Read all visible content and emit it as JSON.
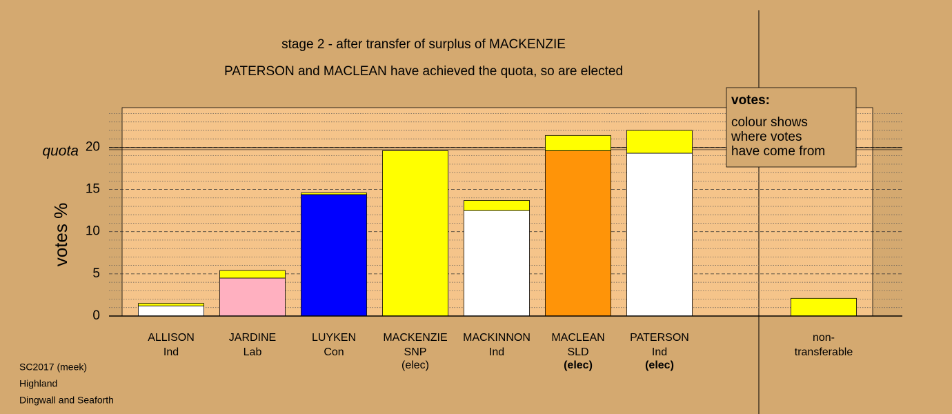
{
  "chart_data": {
    "type": "stacked-bar",
    "title": "stage 2 - after transfer of surplus of MACKENZIE",
    "subtitle": "PATERSON and MACLEAN have achieved the quota, so are elected",
    "y_label": "votes %",
    "categories": [
      "ALLISON",
      "JARDINE",
      "LUYKEN",
      "MACKENZIE",
      "MACKINNON",
      "MACLEAN",
      "PATERSON",
      "non-"
    ],
    "parties": [
      "Ind",
      "Lab",
      "Con",
      "SNP",
      "Ind",
      "SLD",
      "Ind",
      "transferable"
    ],
    "notes": [
      null,
      null,
      null,
      "(elec)",
      null,
      "(elec)",
      "(elec)",
      null
    ],
    "series": [
      {
        "colors": [
          "#ffffff",
          "#ffb0c0",
          "#0000ff",
          "#ffff00",
          "#ffffff",
          "#ff9408",
          "#ffffff",
          null
        ],
        "values": [
          1.2,
          4.5,
          14.4,
          19.6,
          12.5,
          19.6,
          19.3,
          null
        ]
      },
      {
        "color": "#ffff00",
        "values": [
          0.3,
          0.9,
          0.2,
          null,
          1.2,
          1.8,
          2.7,
          2.1
        ]
      }
    ],
    "ylim": [
      0,
      24.7
    ],
    "yticks": [
      0,
      5,
      10,
      15,
      20
    ],
    "minor_grid_step": 1,
    "grid": true,
    "quota": 19.8,
    "quota_label": "quota",
    "legend": {
      "title": "votes:",
      "lines": [
        "colour shows",
        "where votes",
        "have come from"
      ]
    },
    "footer": [
      "SC2017 (meek)",
      "Highland",
      "Dingwall and Seaforth"
    ]
  }
}
